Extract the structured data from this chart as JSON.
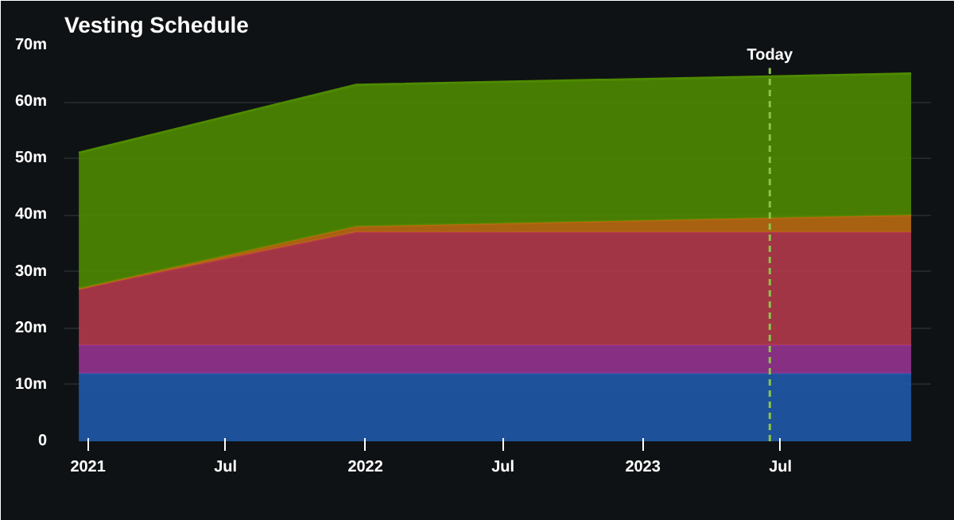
{
  "chart_data": {
    "type": "area",
    "title": "Vesting Schedule",
    "stacked": true,
    "grid": "y",
    "x": [
      "2020-12-20",
      "2021-12-20",
      "2023-12-20"
    ],
    "series": [
      {
        "color": "#1f5aa8",
        "values": [
          12,
          12,
          12
        ]
      },
      {
        "color": "#93338f",
        "values": [
          5,
          5,
          5
        ]
      },
      {
        "color": "#b23a4a",
        "values": [
          10,
          20,
          20
        ]
      },
      {
        "color": "#b86a10",
        "values": [
          0,
          1,
          3
        ]
      },
      {
        "color": "#4e8a00",
        "values": [
          24,
          25,
          25
        ]
      }
    ],
    "xlim": [
      "2020-12-01",
      "2024-01-15"
    ],
    "xticks": [
      {
        "value": "2021-01-01",
        "label": "2021"
      },
      {
        "value": "2021-07-01",
        "label": "Jul"
      },
      {
        "value": "2022-01-01",
        "label": "2022"
      },
      {
        "value": "2022-07-01",
        "label": "Jul"
      },
      {
        "value": "2023-01-01",
        "label": "2023"
      },
      {
        "value": "2023-07-01",
        "label": "Jul"
      }
    ],
    "ylim": [
      0,
      70
    ],
    "yticks": [
      0,
      {
        "value": 10,
        "label": "10m"
      },
      {
        "value": 20,
        "label": "20m"
      },
      {
        "value": 30,
        "label": "30m"
      },
      {
        "value": 40,
        "label": "40m"
      },
      {
        "value": 50,
        "label": "50m"
      },
      {
        "value": 60,
        "label": "60m"
      },
      {
        "value": 70,
        "label": "70m"
      }
    ],
    "ref_lines": [
      {
        "axis": "x",
        "value": "2023-06-17",
        "label": "Today",
        "color": "#8bc34a",
        "line_style": "dashed"
      }
    ]
  }
}
